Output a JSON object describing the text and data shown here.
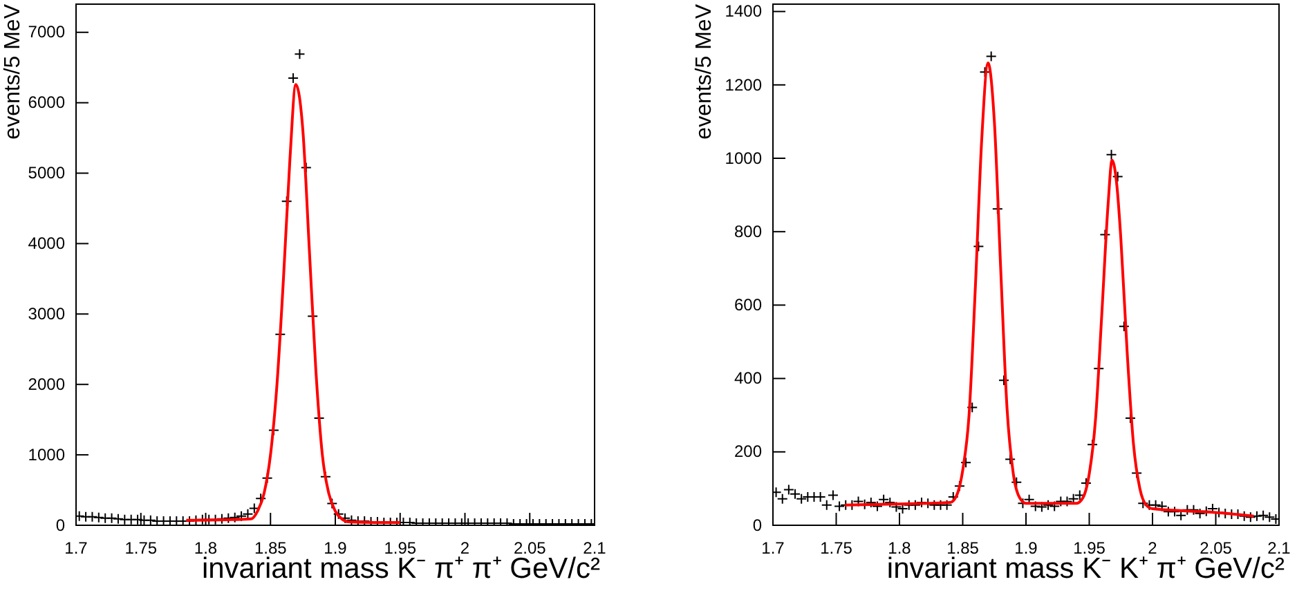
{
  "chart_data": [
    {
      "type": "scatter",
      "xlabel": "invariant mass K⁻ π⁺ π⁺  GeV/c²",
      "ylabel": "events/5 MeV",
      "xlim": [
        1.7,
        2.1
      ],
      "ylim": [
        0,
        7400
      ],
      "xticks": [
        1.7,
        1.75,
        1.8,
        1.85,
        1.9,
        1.95,
        2,
        2.05,
        2.1
      ],
      "yticks": [
        0,
        1000,
        2000,
        3000,
        4000,
        5000,
        6000,
        7000
      ],
      "x": [
        1.7025,
        1.7075,
        1.7125,
        1.7175,
        1.7225,
        1.7275,
        1.7325,
        1.7375,
        1.7425,
        1.7475,
        1.7525,
        1.7575,
        1.7625,
        1.7675,
        1.7725,
        1.7775,
        1.7825,
        1.7875,
        1.7925,
        1.7975,
        1.8025,
        1.8075,
        1.8125,
        1.8175,
        1.8225,
        1.8275,
        1.8325,
        1.8375,
        1.8425,
        1.8475,
        1.8525,
        1.8575,
        1.8625,
        1.8675,
        1.8725,
        1.8775,
        1.8825,
        1.8875,
        1.8925,
        1.8975,
        1.9025,
        1.9075,
        1.9125,
        1.9175,
        1.9225,
        1.9275,
        1.9325,
        1.9375,
        1.9425,
        1.9475,
        1.9525,
        1.9575,
        1.9625,
        1.9675,
        1.9725,
        1.9775,
        1.9825,
        1.9875,
        1.9925,
        1.9975,
        2.0025,
        2.0075,
        2.0125,
        2.0175,
        2.0225,
        2.0275,
        2.0325,
        2.0375,
        2.0425,
        2.0475,
        2.0525,
        2.0575,
        2.0625,
        2.0675,
        2.0725,
        2.0775,
        2.0825,
        2.0875,
        2.0925,
        2.0975
      ],
      "series": [
        {
          "marker": "cross",
          "color": "#000000",
          "values": [
            130,
            120,
            120,
            110,
            100,
            100,
            90,
            80,
            80,
            80,
            70,
            70,
            60,
            60,
            60,
            60,
            60,
            60,
            70,
            80,
            80,
            80,
            90,
            100,
            110,
            130,
            160,
            240,
            380,
            670,
            1350,
            2710,
            4600,
            6350,
            6690,
            5080,
            2970,
            1520,
            690,
            310,
            160,
            100,
            70,
            60,
            60,
            50,
            50,
            40,
            40,
            40,
            40,
            40,
            30,
            30,
            30,
            30,
            30,
            30,
            30,
            30,
            30,
            30,
            30,
            30,
            30,
            30,
            30,
            20,
            20,
            20,
            20,
            20,
            20,
            20,
            20,
            20,
            20,
            20,
            20,
            20
          ]
        },
        {
          "type": "line",
          "color": "#ff0000",
          "x": [
            1.785,
            1.82,
            1.835,
            1.84,
            1.845,
            1.85,
            1.855,
            1.86,
            1.865,
            1.8695,
            1.875,
            1.88,
            1.885,
            1.89,
            1.895,
            1.9,
            1.905,
            1.91,
            1.93,
            1.95
          ],
          "values": [
            70,
            80,
            90,
            200,
            450,
            1000,
            2000,
            3500,
            5200,
            6260,
            5600,
            3900,
            2200,
            1000,
            450,
            200,
            90,
            50,
            40,
            40
          ]
        }
      ]
    },
    {
      "type": "scatter",
      "xlabel": "invariant mass K⁻ K⁺ π⁺  GeV/c²",
      "ylabel": "events/5 MeV",
      "xlim": [
        1.7,
        2.1
      ],
      "ylim": [
        0,
        1420
      ],
      "xticks": [
        1.7,
        1.75,
        1.8,
        1.85,
        1.9,
        1.95,
        2,
        2.05,
        2.1
      ],
      "yticks": [
        0,
        200,
        400,
        600,
        800,
        1000,
        1200,
        1400
      ],
      "x": [
        1.7025,
        1.7075,
        1.7125,
        1.7175,
        1.7225,
        1.7275,
        1.7325,
        1.7375,
        1.7425,
        1.7475,
        1.7525,
        1.7575,
        1.7625,
        1.7675,
        1.7725,
        1.7775,
        1.7825,
        1.7875,
        1.7925,
        1.7975,
        1.8025,
        1.8075,
        1.8125,
        1.8175,
        1.8225,
        1.8275,
        1.8325,
        1.8375,
        1.8425,
        1.8475,
        1.8525,
        1.8575,
        1.8625,
        1.8675,
        1.8725,
        1.8775,
        1.8825,
        1.8875,
        1.8925,
        1.8975,
        1.9025,
        1.9075,
        1.9125,
        1.9175,
        1.9225,
        1.9275,
        1.9325,
        1.9375,
        1.9425,
        1.9475,
        1.9525,
        1.9575,
        1.9625,
        1.9675,
        1.9725,
        1.9775,
        1.9825,
        1.9875,
        1.9925,
        1.9975,
        2.0025,
        2.0075,
        2.0125,
        2.0175,
        2.0225,
        2.0275,
        2.0325,
        2.0375,
        2.0425,
        2.0475,
        2.0525,
        2.0575,
        2.0625,
        2.0675,
        2.0725,
        2.0775,
        2.0825,
        2.0875,
        2.0925,
        2.0975
      ],
      "series": [
        {
          "marker": "cross",
          "color": "#000000",
          "values": [
            90,
            72,
            97,
            85,
            72,
            77,
            77,
            77,
            55,
            82,
            52,
            55,
            55,
            65,
            57,
            62,
            52,
            70,
            62,
            50,
            45,
            55,
            55,
            62,
            60,
            55,
            55,
            55,
            77,
            107,
            171,
            321,
            760,
            1235,
            1278,
            862,
            395,
            180,
            117,
            60,
            70,
            52,
            50,
            55,
            52,
            65,
            65,
            72,
            82,
            115,
            220,
            427,
            792,
            1010,
            950,
            542,
            292,
            142,
            60,
            55,
            55,
            52,
            37,
            37,
            27,
            42,
            42,
            32,
            38,
            45,
            35,
            32,
            30,
            30,
            25,
            22,
            25,
            27,
            22,
            17
          ]
        },
        {
          "type": "line",
          "color": "#ff0000",
          "x": [
            1.757,
            1.8,
            1.84,
            1.845,
            1.85,
            1.855,
            1.86,
            1.865,
            1.87,
            1.875,
            1.88,
            1.885,
            1.89,
            1.895,
            1.9,
            1.94,
            1.945,
            1.95,
            1.955,
            1.96,
            1.965,
            1.968,
            1.972,
            1.975,
            1.98,
            1.985,
            1.99,
            1.995,
            2.0,
            2.05,
            2.08
          ],
          "values": [
            55,
            58,
            62,
            80,
            150,
            300,
            650,
            1050,
            1260,
            1100,
            700,
            320,
            140,
            75,
            60,
            60,
            75,
            140,
            290,
            580,
            880,
            995,
            920,
            780,
            470,
            220,
            100,
            55,
            45,
            35,
            25
          ]
        }
      ]
    }
  ]
}
